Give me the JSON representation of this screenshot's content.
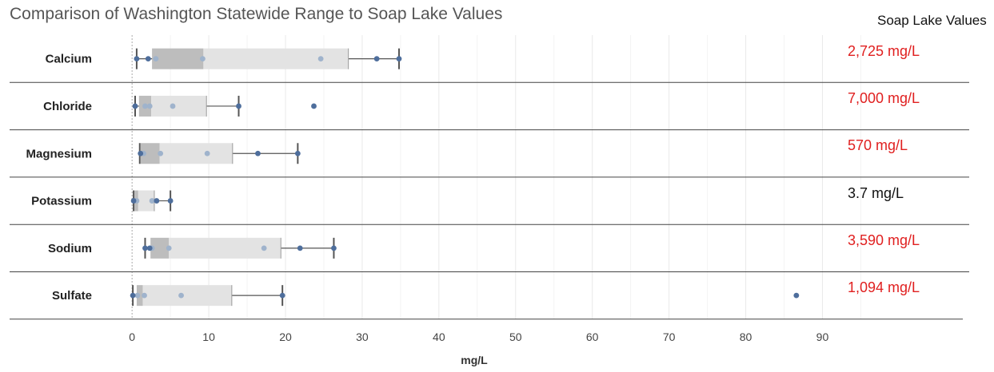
{
  "title": "Comparison of Washington Statewide Range to Soap Lake Values",
  "soap_header": "Soap Lake Values",
  "colors": {
    "box_dark": "#bdbdbd",
    "box_light": "#e3e3e3",
    "point_dark": "#4e6e9c",
    "point_light": "#9fb3cc",
    "whisker": "#555555",
    "exceed": "#e02020",
    "normal": "#111111",
    "grid": "#e9e9e9",
    "separator": "#444444"
  },
  "chart_data": {
    "type": "boxplot",
    "title": "Comparison of Washington Statewide Range to Soap Lake Values",
    "xlabel": "mg/L",
    "xlim": [
      -4.5,
      96
    ],
    "xticks": [
      0,
      10,
      20,
      30,
      40,
      50,
      60,
      70,
      80,
      90
    ],
    "grid": true,
    "categories": [
      "Calcium",
      "Chloride",
      "Magnesium",
      "Potassium",
      "Sodium",
      "Sulfate"
    ],
    "boxes": [
      {
        "name": "Calcium",
        "whisker_low": 0.6,
        "q1": 2.6,
        "median": 9.3,
        "q3": 28.2,
        "whisker_high": 34.8,
        "points_dark": [
          0.6,
          2.1,
          31.9,
          34.8
        ],
        "points_light": [
          3.1,
          9.2,
          24.6
        ]
      },
      {
        "name": "Chloride",
        "whisker_low": 0.4,
        "q1": 0.9,
        "median": 2.5,
        "q3": 9.7,
        "whisker_high": 13.9,
        "points_dark": [
          0.4,
          13.9,
          23.7
        ],
        "points_light": [
          1.7,
          2.3,
          5.3
        ]
      },
      {
        "name": "Magnesium",
        "whisker_low": 1.0,
        "q1": 1.1,
        "median": 3.6,
        "q3": 13.1,
        "whisker_high": 21.6,
        "points_dark": [
          1.1,
          16.4,
          21.6
        ],
        "points_light": [
          1.5,
          3.7,
          9.8
        ]
      },
      {
        "name": "Potassium",
        "whisker_low": 0.2,
        "q1": 0.3,
        "median": 0.8,
        "q3": 2.9,
        "whisker_high": 5.0,
        "points_dark": [
          0.2,
          3.2,
          5.0
        ],
        "points_light": [
          0.6,
          2.6
        ]
      },
      {
        "name": "Sodium",
        "whisker_low": 1.7,
        "q1": 2.4,
        "median": 4.8,
        "q3": 19.4,
        "whisker_high": 26.3,
        "points_dark": [
          1.7,
          2.3,
          21.9,
          26.3
        ],
        "points_light": [
          2.6,
          4.8,
          17.2
        ]
      },
      {
        "name": "Sulfate",
        "whisker_low": 0.1,
        "q1": 0.6,
        "median": 1.4,
        "q3": 13.0,
        "whisker_high": 19.6,
        "points_dark": [
          0.1,
          19.6,
          86.6
        ],
        "points_light": [
          0.7,
          1.6,
          6.4
        ]
      }
    ]
  },
  "soap_lake_values": [
    {
      "name": "Calcium",
      "text": "2,725 mg/L",
      "exceeds": true
    },
    {
      "name": "Chloride",
      "text": "7,000 mg/L",
      "exceeds": true
    },
    {
      "name": "Magnesium",
      "text": "570 mg/L",
      "exceeds": true
    },
    {
      "name": "Potassium",
      "text": "3.7 mg/L",
      "exceeds": false
    },
    {
      "name": "Sodium",
      "text": "3,590 mg/L",
      "exceeds": true
    },
    {
      "name": "Sulfate",
      "text": "1,094 mg/L",
      "exceeds": true
    }
  ]
}
